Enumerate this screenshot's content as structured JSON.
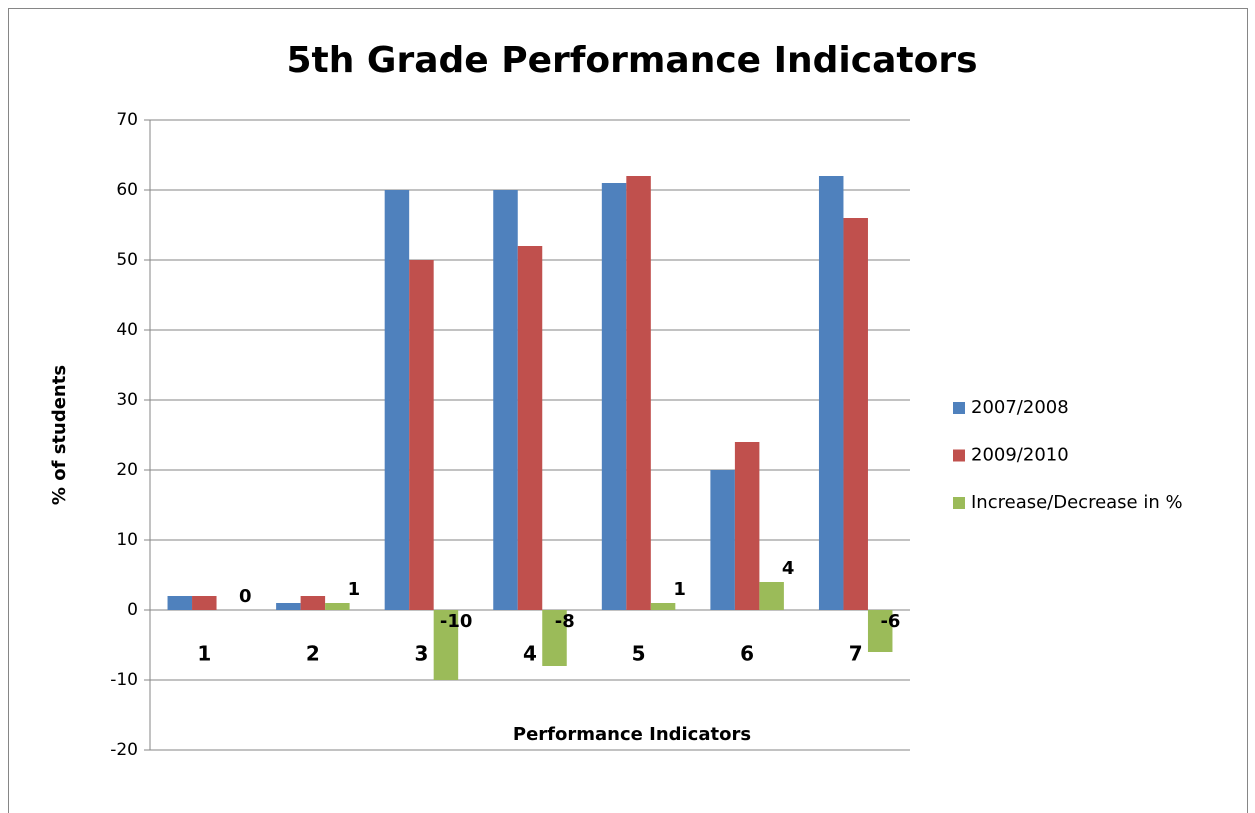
{
  "chart_data": {
    "type": "bar",
    "title": "5th Grade Performance Indicators",
    "x_label": "Performance Indicators",
    "y_label": "% of students",
    "categories": [
      "1",
      "2",
      "3",
      "4",
      "5",
      "6",
      "7"
    ],
    "series": [
      {
        "name": "2007/2008",
        "color": "#4f81bd",
        "values": [
          2,
          1,
          60,
          60,
          61,
          20,
          62
        ]
      },
      {
        "name": "2009/2010",
        "color": "#c0504d",
        "values": [
          2,
          2,
          50,
          52,
          62,
          24,
          56
        ]
      },
      {
        "name": "Increase/Decrease in %",
        "color": "#9bbb59",
        "values": [
          0,
          1,
          -10,
          -8,
          1,
          4,
          -6
        ]
      }
    ],
    "ylim": [
      -20,
      70
    ],
    "yticks": [
      -20,
      -10,
      0,
      10,
      20,
      30,
      40,
      50,
      60,
      70
    ],
    "grid": true,
    "legend": "right"
  }
}
